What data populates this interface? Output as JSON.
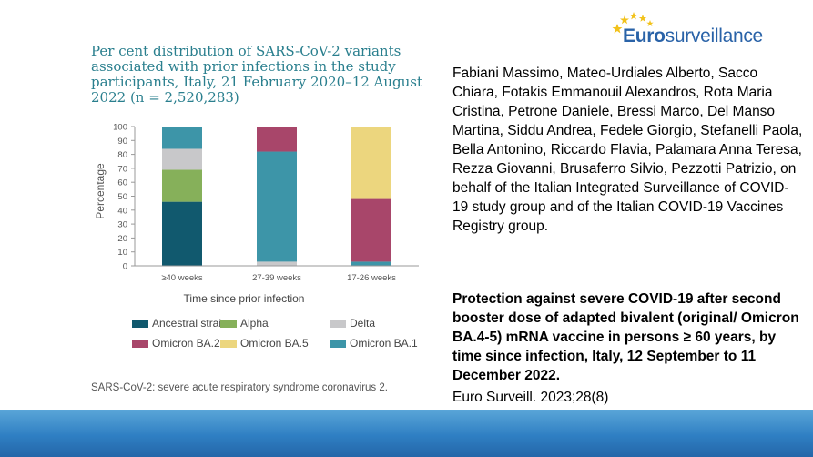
{
  "logo": {
    "text_bold": "Euro",
    "text_rest": "surveillance"
  },
  "authors": "Fabiani Massimo, Mateo-Urdiales Alberto, Sacco Chiara, Fotakis Emmanouil Alexandros, Rota Maria Cristina, Petrone Daniele, Bressi Marco, Del Manso Martina, Siddu Andrea, Fedele Giorgio, Stefanelli Paola, Bella Antonino, Riccardo Flavia, Palamara Anna Teresa, Rezza Giovanni, Brusaferro Silvio, Pezzotti Patrizio, on behalf of the Italian Integrated Surveillance of COVID-19 study group and of the Italian COVID-19 Vaccines Registry group.",
  "paper_title": "Protection against severe COVID-19 after second booster dose of adapted bivalent (original/ Omicron BA.4-5) mRNA vaccine in persons ≥ 60 years, by time since infection, Italy, 12 September to 11 December 2022.",
  "citation": "Euro Surveill. 2023;28(8)",
  "chart_note": "SARS-CoV-2: severe acute respiratory syndrome coronavirus 2.",
  "chart_data": {
    "type": "bar",
    "stacked": true,
    "title": "Per cent distribution of SARS-CoV-2 variants associated with prior infections in the study participants, Italy, 21 February 2020–12 August 2022 (n = 2,520,283)",
    "xlabel": "Time since prior infection",
    "ylabel": "Percentage",
    "ylim": [
      0,
      100
    ],
    "yticks": [
      0,
      10,
      20,
      30,
      40,
      50,
      60,
      70,
      80,
      90,
      100
    ],
    "categories": [
      "≥40 weeks",
      "27-39 weeks",
      "17-26 weeks"
    ],
    "legend_placement": "bottom",
    "series": [
      {
        "name": "Ancestral strain",
        "color": "#11596e",
        "values": [
          46,
          0,
          0
        ]
      },
      {
        "name": "Alpha",
        "color": "#86b05a",
        "values": [
          23,
          0,
          0
        ]
      },
      {
        "name": "Delta",
        "color": "#c8c8ca",
        "values": [
          15,
          3,
          0
        ]
      },
      {
        "name": "Omicron BA.1",
        "color": "#3d95a8",
        "values": [
          16,
          79,
          3
        ]
      },
      {
        "name": "Omicron BA.2",
        "color": "#a8466a",
        "values": [
          0,
          18,
          45
        ]
      },
      {
        "name": "Omicron BA.5",
        "color": "#ecd67e",
        "values": [
          0,
          0,
          52
        ]
      }
    ],
    "legend_order": [
      "Ancestral strain",
      "Alpha",
      "Delta",
      "Omicron BA.2",
      "Omicron BA.5",
      "Omicron BA.1"
    ]
  }
}
